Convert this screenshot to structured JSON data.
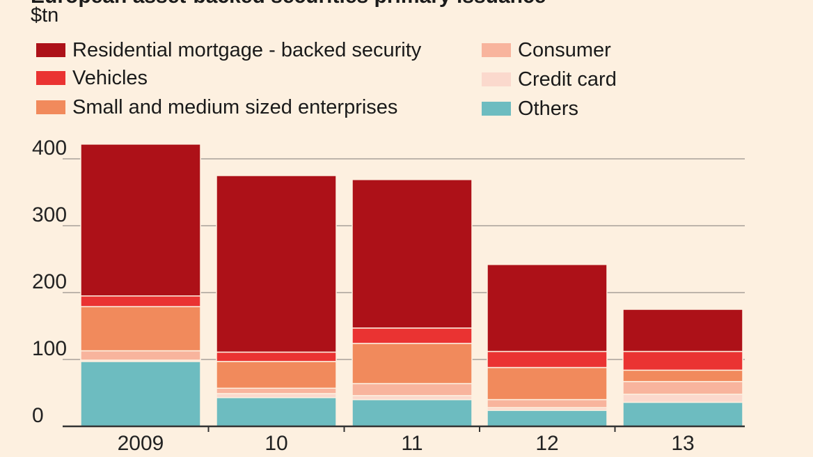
{
  "chart_data": {
    "type": "bar",
    "stacked": true,
    "title": "European asset-backed securities primary issuance",
    "ylabel": "$tn",
    "xlabel": "",
    "categories": [
      "2009",
      "10",
      "11",
      "12",
      "13"
    ],
    "ylim": [
      0,
      400
    ],
    "yticks": [
      0,
      100,
      200,
      300,
      400
    ],
    "grid": true,
    "legend_position": "top",
    "series": [
      {
        "name": "Others",
        "color": "#6dbcc0",
        "values": [
          97,
          43,
          40,
          24,
          36
        ]
      },
      {
        "name": "Credit card",
        "color": "#fbd9cd",
        "values": [
          2,
          6,
          6,
          4,
          12
        ]
      },
      {
        "name": "Consumer",
        "color": "#f8b49d",
        "values": [
          14,
          8,
          18,
          12,
          19
        ]
      },
      {
        "name": "Small and medium sized enterprises",
        "color": "#f18a5c",
        "values": [
          66,
          40,
          60,
          48,
          17
        ]
      },
      {
        "name": "Vehicles",
        "color": "#ea3332",
        "values": [
          16,
          14,
          23,
          24,
          28
        ]
      },
      {
        "name": "Residential mortgage - backed security",
        "color": "#ad1118",
        "values": [
          227,
          264,
          222,
          130,
          63
        ]
      }
    ],
    "legend_order": [
      "Residential mortgage - backed security",
      "Consumer",
      "Vehicles",
      "Credit card",
      "Small and medium sized enterprises",
      "Others"
    ]
  }
}
